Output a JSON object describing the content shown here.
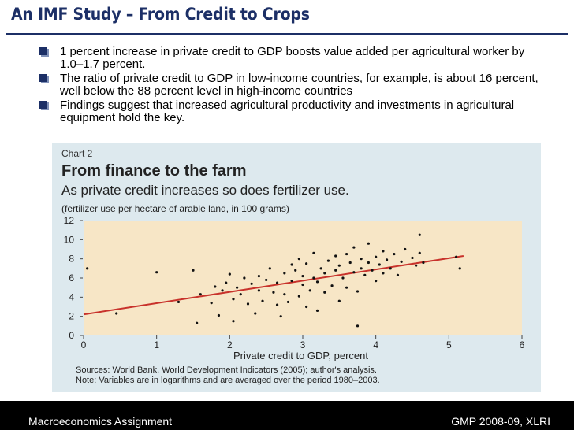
{
  "slide": {
    "title": "An IMF Study – From Credit to Crops",
    "bullets": [
      "1 percent increase in private credit to GDP boosts value added per agricultural worker by 1.0–1.7 percent.",
      "The ratio of private credit to GDP in low-income countries, for example, is about 16 percent, well below the 88 percent level in high-income countries",
      "Findings suggest that increased agricultural productivity and investments in agricultural equipment hold the key."
    ]
  },
  "chart": {
    "number": "Chart 2",
    "title": "From finance to the farm",
    "subtitle": "As private credit increases so does fertilizer use.",
    "unit": "(fertilizer use per hectare of arable land, in 100 grams)",
    "source_line1": "Sources: World Bank, World Development Indicators (2005); author's analysis.",
    "source_line2": "Note: Variables are in logarithms and are averaged over the period 1980–2003.",
    "colors": {
      "background": "#dde9ee",
      "plot": "#f7e6c6",
      "trend": "#c8322b",
      "points": "#111111"
    }
  },
  "chart_data": {
    "type": "scatter",
    "xlabel": "Private credit to GDP, percent",
    "ylabel": "",
    "xlim": [
      0,
      6
    ],
    "ylim": [
      0,
      12
    ],
    "xticks": [
      0,
      1,
      2,
      3,
      4,
      5,
      6
    ],
    "yticks": [
      0,
      2,
      4,
      6,
      8,
      10,
      12
    ],
    "trendline": [
      [
        0,
        2.2
      ],
      [
        5.2,
        8.3
      ]
    ],
    "points": [
      [
        0.05,
        7.0
      ],
      [
        0.45,
        2.3
      ],
      [
        1.0,
        6.6
      ],
      [
        1.3,
        3.5
      ],
      [
        1.5,
        6.8
      ],
      [
        1.55,
        1.3
      ],
      [
        1.6,
        4.3
      ],
      [
        1.75,
        3.4
      ],
      [
        1.8,
        5.1
      ],
      [
        1.85,
        2.1
      ],
      [
        1.9,
        4.7
      ],
      [
        1.95,
        5.5
      ],
      [
        2.0,
        6.4
      ],
      [
        2.05,
        3.8
      ],
      [
        2.05,
        1.5
      ],
      [
        2.1,
        5.0
      ],
      [
        2.15,
        4.3
      ],
      [
        2.2,
        6.0
      ],
      [
        2.25,
        3.3
      ],
      [
        2.3,
        5.4
      ],
      [
        2.35,
        2.3
      ],
      [
        2.4,
        6.2
      ],
      [
        2.4,
        4.7
      ],
      [
        2.45,
        3.6
      ],
      [
        2.5,
        5.8
      ],
      [
        2.55,
        7.0
      ],
      [
        2.6,
        4.5
      ],
      [
        2.65,
        3.2
      ],
      [
        2.65,
        5.5
      ],
      [
        2.7,
        2.0
      ],
      [
        2.75,
        6.5
      ],
      [
        2.75,
        4.3
      ],
      [
        2.8,
        3.5
      ],
      [
        2.85,
        5.7
      ],
      [
        2.85,
        7.4
      ],
      [
        2.9,
        6.8
      ],
      [
        2.95,
        4.1
      ],
      [
        2.95,
        8.0
      ],
      [
        3.0,
        5.3
      ],
      [
        3.0,
        6.2
      ],
      [
        3.05,
        3.0
      ],
      [
        3.05,
        7.5
      ],
      [
        3.1,
        4.7
      ],
      [
        3.15,
        6.0
      ],
      [
        3.15,
        8.6
      ],
      [
        3.2,
        5.6
      ],
      [
        3.2,
        2.6
      ],
      [
        3.25,
        7.0
      ],
      [
        3.3,
        6.5
      ],
      [
        3.3,
        4.5
      ],
      [
        3.35,
        7.8
      ],
      [
        3.4,
        5.2
      ],
      [
        3.45,
        6.8
      ],
      [
        3.45,
        8.3
      ],
      [
        3.5,
        3.6
      ],
      [
        3.5,
        7.3
      ],
      [
        3.55,
        6.0
      ],
      [
        3.6,
        8.5
      ],
      [
        3.6,
        5.0
      ],
      [
        3.65,
        7.6
      ],
      [
        3.7,
        6.6
      ],
      [
        3.7,
        9.2
      ],
      [
        3.75,
        1.0
      ],
      [
        3.75,
        4.6
      ],
      [
        3.8,
        7.0
      ],
      [
        3.8,
        8.0
      ],
      [
        3.85,
        6.3
      ],
      [
        3.9,
        7.6
      ],
      [
        3.9,
        9.6
      ],
      [
        3.95,
        6.8
      ],
      [
        4.0,
        8.2
      ],
      [
        4.0,
        5.7
      ],
      [
        4.05,
        7.4
      ],
      [
        4.1,
        6.5
      ],
      [
        4.1,
        8.8
      ],
      [
        4.15,
        7.9
      ],
      [
        4.2,
        7.0
      ],
      [
        4.25,
        8.5
      ],
      [
        4.3,
        6.3
      ],
      [
        4.35,
        7.7
      ],
      [
        4.4,
        9.0
      ],
      [
        4.5,
        8.1
      ],
      [
        4.55,
        7.3
      ],
      [
        4.6,
        10.5
      ],
      [
        4.6,
        8.6
      ],
      [
        4.65,
        7.6
      ],
      [
        5.1,
        8.2
      ],
      [
        5.15,
        7.0
      ]
    ]
  },
  "footer": {
    "left": "Macroeconomics Assignment",
    "right": "GMP 2008-09, XLRI"
  }
}
